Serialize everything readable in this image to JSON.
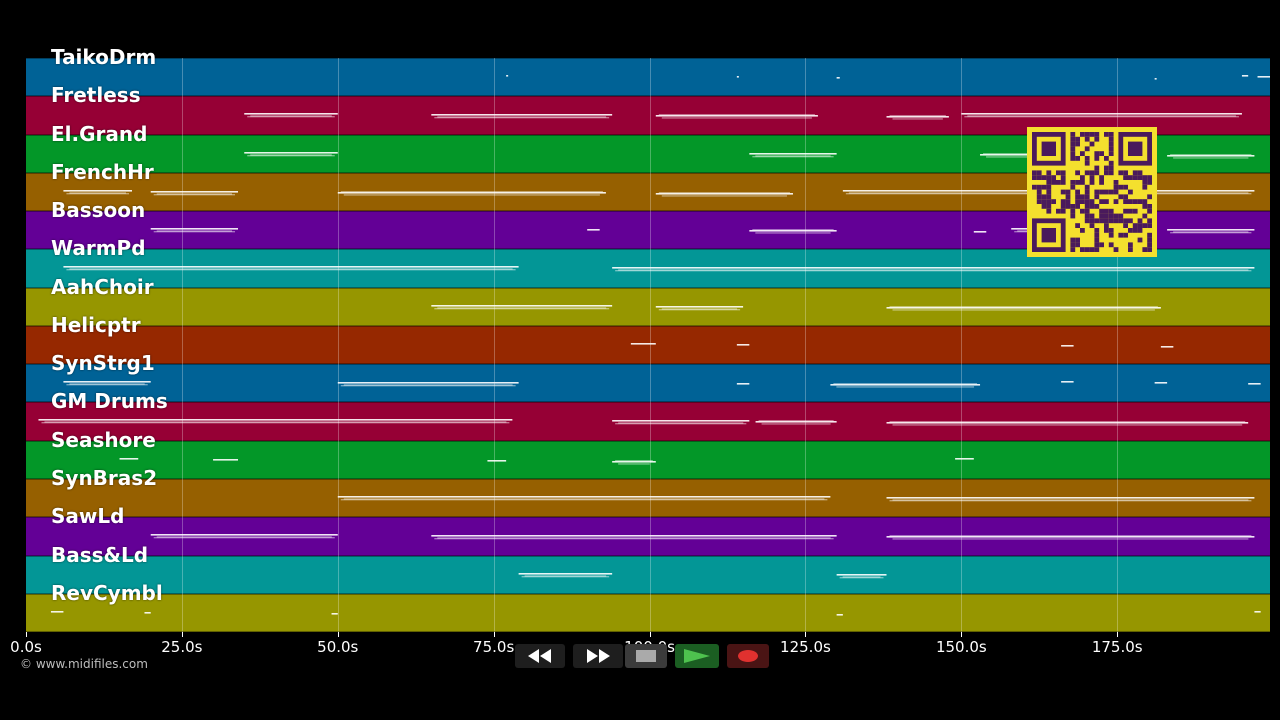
{
  "app": {
    "copyright": "© www.midifiles.com"
  },
  "tracks": [
    {
      "label": "TaikoDrm",
      "color": "#006296"
    },
    {
      "label": "Fretless",
      "color": "#960035"
    },
    {
      "label": "El.Grand",
      "color": "#039728"
    },
    {
      "label": "FrenchHr",
      "color": "#966000"
    },
    {
      "label": "Bassoon",
      "color": "#630096"
    },
    {
      "label": "WarmPd",
      "color": "#039696"
    },
    {
      "label": "AahChoir",
      "color": "#969600"
    },
    {
      "label": "Helicptr",
      "color": "#962800"
    },
    {
      "label": "SynStrg1",
      "color": "#006296"
    },
    {
      "label": "GM Drums",
      "color": "#960035"
    },
    {
      "label": "Seashore",
      "color": "#039728"
    },
    {
      "label": "SynBras2",
      "color": "#966000"
    },
    {
      "label": "SawLd",
      "color": "#630096"
    },
    {
      "label": "Bass&Ld",
      "color": "#039696"
    },
    {
      "label": "RevCymbl",
      "color": "#969600"
    }
  ],
  "timeline": {
    "unit": "s",
    "range": [
      0,
      199.5
    ],
    "ticks": [
      {
        "value": 0,
        "label": "0.0s"
      },
      {
        "value": 25,
        "label": "25.0s"
      },
      {
        "value": 50,
        "label": "50.0s"
      },
      {
        "value": 75,
        "label": "75.0s"
      },
      {
        "value": 100,
        "label": "100.0s"
      },
      {
        "value": 125,
        "label": "125.0s"
      },
      {
        "value": 150,
        "label": "150.0s"
      },
      {
        "value": 175,
        "label": "175.0s"
      }
    ]
  },
  "activity": [
    [
      [
        77,
        77.3
      ],
      [
        114,
        114.3
      ],
      [
        130,
        130.5
      ],
      [
        181,
        181.3
      ],
      [
        195,
        196
      ],
      [
        197.5,
        199.5
      ]
    ],
    [
      [
        35,
        50
      ],
      [
        65,
        94
      ],
      [
        101,
        127
      ],
      [
        138,
        148
      ],
      [
        150,
        195
      ]
    ],
    [
      [
        35,
        50
      ],
      [
        116,
        130
      ],
      [
        153,
        167
      ],
      [
        183,
        197
      ]
    ],
    [
      [
        6,
        17
      ],
      [
        20,
        34
      ],
      [
        50,
        93
      ],
      [
        101,
        123
      ],
      [
        131,
        197
      ]
    ],
    [
      [
        20,
        34
      ],
      [
        90,
        92
      ],
      [
        116,
        130
      ],
      [
        152,
        154
      ],
      [
        158,
        166
      ],
      [
        183,
        197
      ]
    ],
    [
      [
        6,
        79
      ],
      [
        94,
        197
      ]
    ],
    [
      [
        65,
        94
      ],
      [
        101,
        115
      ],
      [
        138,
        182
      ]
    ],
    [
      [
        97,
        101
      ],
      [
        114,
        116
      ],
      [
        166,
        168
      ],
      [
        182,
        184
      ]
    ],
    [
      [
        6,
        20
      ],
      [
        50,
        79
      ],
      [
        114,
        116
      ],
      [
        129,
        153
      ],
      [
        166,
        168
      ],
      [
        181,
        183
      ],
      [
        196,
        198
      ]
    ],
    [
      [
        2,
        78
      ],
      [
        94,
        116
      ],
      [
        117,
        130
      ],
      [
        138,
        196
      ]
    ],
    [
      [
        15,
        18
      ],
      [
        30,
        34
      ],
      [
        74,
        77
      ],
      [
        94,
        101
      ],
      [
        149,
        152
      ]
    ],
    [
      [
        50,
        129
      ],
      [
        138,
        197
      ]
    ],
    [
      [
        20,
        50
      ],
      [
        65,
        130
      ],
      [
        138,
        197
      ]
    ],
    [
      [
        79,
        94
      ],
      [
        130,
        138
      ]
    ],
    [
      [
        4,
        6
      ],
      [
        19,
        20
      ],
      [
        49,
        50
      ],
      [
        130,
        131
      ],
      [
        197,
        198
      ]
    ]
  ],
  "transport": {
    "rewind_icon": "rewind-icon",
    "forward_icon": "fast-forward-icon",
    "stop_icon": "stop-icon",
    "play_icon": "play-icon",
    "record_icon": "record-icon",
    "colors": {
      "play": "#4ec24e",
      "record": "#e0312f",
      "stop": "#aaaaaa"
    }
  },
  "qr_icon": "qr-code-icon"
}
